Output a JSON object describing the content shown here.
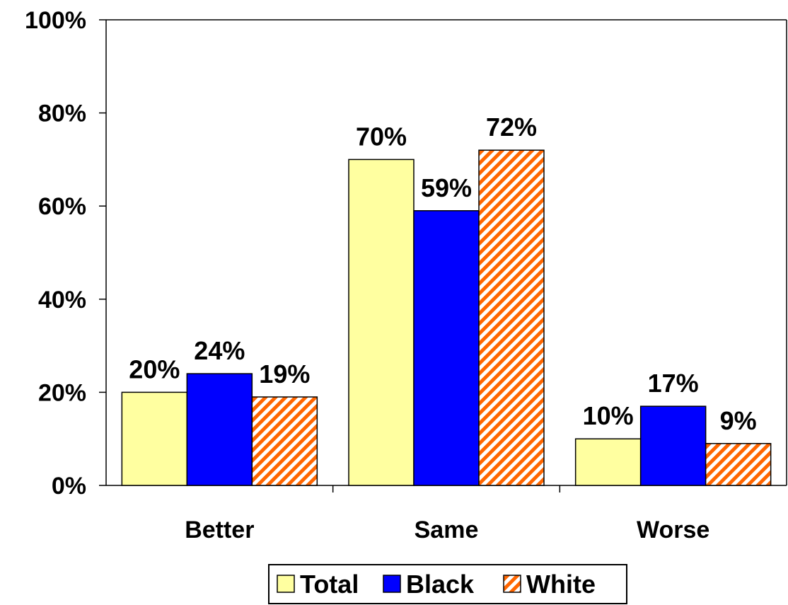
{
  "chart_data": {
    "type": "bar",
    "title": "",
    "xlabel": "",
    "ylabel": "",
    "categories": [
      "Better",
      "Same",
      "Worse"
    ],
    "series": [
      {
        "name": "Total",
        "values": [
          20,
          70,
          10
        ],
        "labels": [
          "20%",
          "70%",
          "10%"
        ],
        "color": "#FFFFA0",
        "pattern": "solid"
      },
      {
        "name": "Black",
        "values": [
          24,
          59,
          17
        ],
        "labels": [
          "24%",
          "59%",
          "17%"
        ],
        "color": "#0000FF",
        "pattern": "solid"
      },
      {
        "name": "White",
        "values": [
          19,
          72,
          9
        ],
        "labels": [
          "19%",
          "72%",
          "9%"
        ],
        "color": "#FF6600",
        "pattern": "diagonal-stripes"
      }
    ],
    "ylim": [
      0,
      100
    ],
    "yticks": [
      0,
      20,
      40,
      60,
      80,
      100
    ],
    "ytick_labels": [
      "0%",
      "20%",
      "40%",
      "60%",
      "80%",
      "100%"
    ],
    "grid": false,
    "legend_position": "bottom"
  }
}
